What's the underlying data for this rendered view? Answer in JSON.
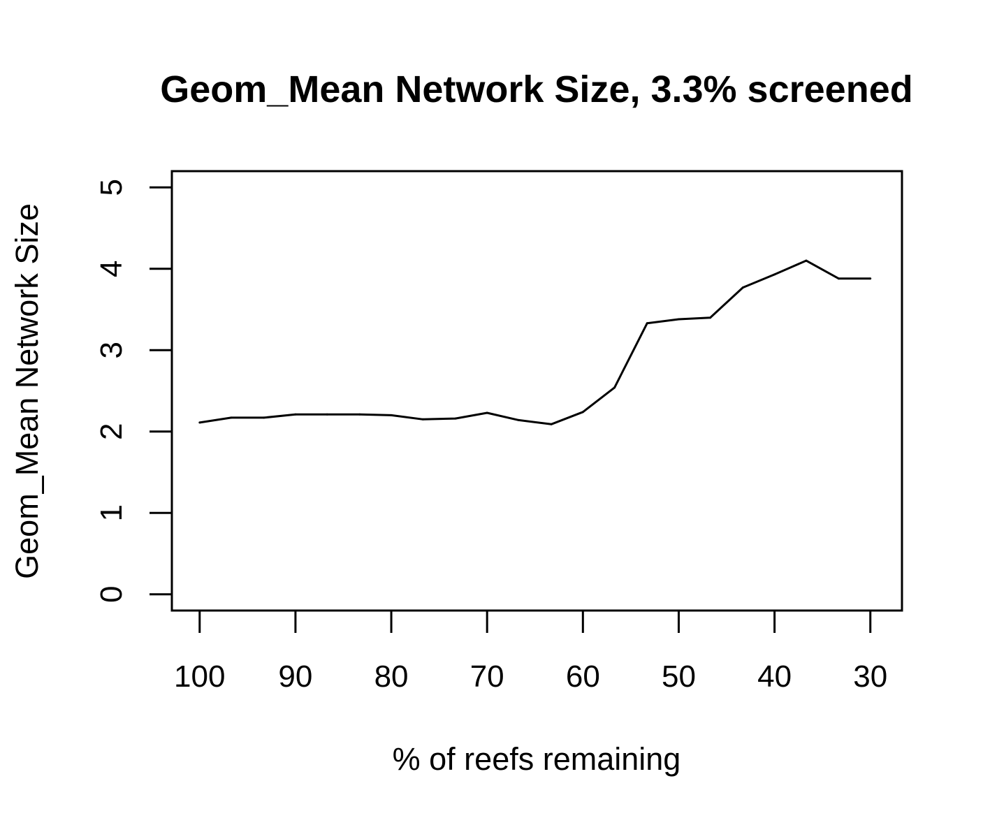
{
  "chart_data": {
    "type": "line",
    "title": "Geom_Mean Network Size, 3.3% screened",
    "xlabel": "% of reefs remaining",
    "ylabel": "Geom_Mean Network Size",
    "xlim": [
      102.9,
      26.7
    ],
    "ylim": [
      -0.2,
      5.2
    ],
    "x_reversed": true,
    "grid": false,
    "legend": "none",
    "x_ticks": [
      "100",
      "90",
      "80",
      "70",
      "60",
      "50",
      "40",
      "30"
    ],
    "y_ticks": [
      "0",
      "1",
      "2",
      "3",
      "4",
      "5"
    ],
    "series": [
      {
        "x": [
          100,
          96.7,
          93.3,
          90,
          86.7,
          83.3,
          80,
          76.7,
          73.3,
          70,
          66.7,
          63.3,
          60,
          56.7,
          53.3,
          50,
          46.7,
          43.3,
          40,
          36.7,
          33.3,
          30
        ],
        "y": [
          2.11,
          2.17,
          2.17,
          2.21,
          2.21,
          2.21,
          2.2,
          2.15,
          2.16,
          2.23,
          2.14,
          2.09,
          2.24,
          2.54,
          3.33,
          3.38,
          3.4,
          3.77,
          3.93,
          4.1,
          3.88,
          3.88
        ]
      }
    ],
    "colors": {
      "line": "#000000",
      "background": "#ffffff"
    }
  }
}
